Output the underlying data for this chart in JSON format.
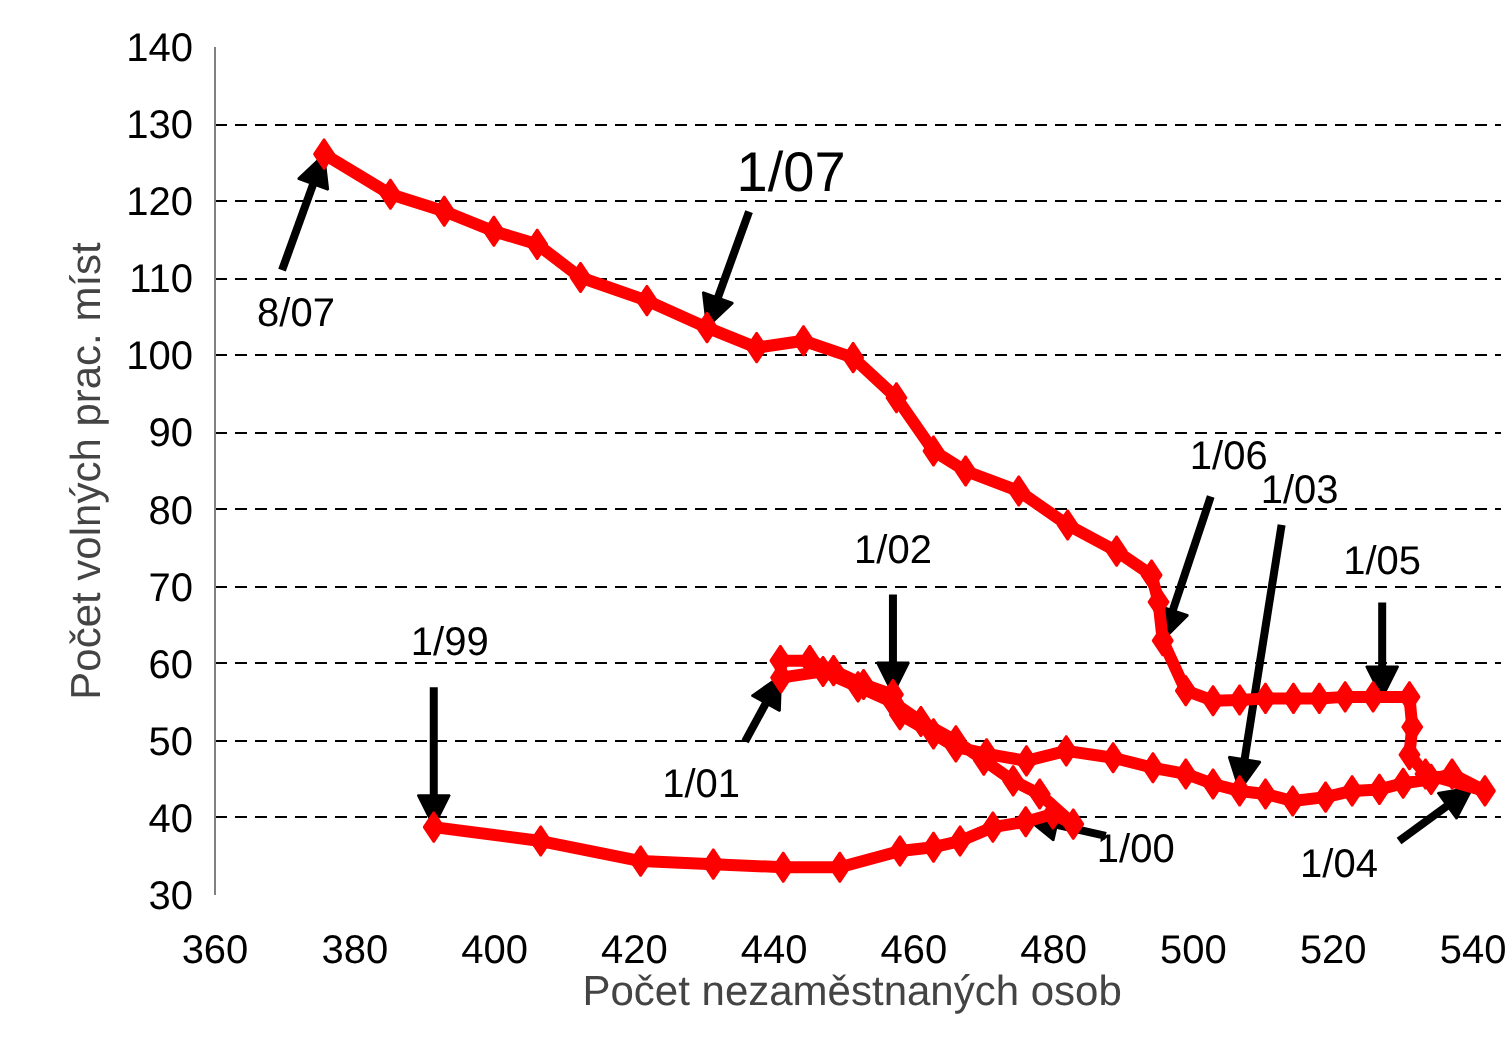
{
  "chart_data": {
    "type": "line",
    "xlabel": "Počet  nezaměstnaných osob",
    "ylabel": "Počet volných prac. míst",
    "series": [
      {
        "color": "#ff0000",
        "x": [
          391.3,
          406.6,
          420.9,
          431.3,
          441.3,
          449.4,
          458,
          462.8,
          466.6,
          471.3,
          476,
          479.9,
          482.8,
          478,
          474.2,
          470,
          466,
          461,
          457,
          452,
          447,
          441,
          440.9,
          445.1,
          448.5,
          452.8,
          457,
          458,
          462.8,
          466,
          470.4,
          476.1,
          481.8,
          488.5,
          494.2,
          498.9,
          502.8,
          506.6,
          510.3,
          514.2,
          518.9,
          522.7,
          526.6,
          530,
          534,
          537,
          541.7,
          533.2,
          530.9,
          531.3,
          530.9,
          525.7,
          521.7,
          518,
          514.3,
          510.3,
          506.6,
          502.8,
          498.9,
          495.6,
          495,
          494,
          489,
          482,
          475,
          467.4,
          462.8,
          457.5,
          451.3,
          444.2,
          437.5,
          430.4,
          421.8,
          412.3,
          406.1,
          399.9,
          392.8,
          385.1,
          375.6
        ],
        "values": [
          38.8,
          37,
          34.4,
          34,
          33.6,
          33.6,
          35.7,
          36.2,
          37,
          38.8,
          39.5,
          40.5,
          39.2,
          43.1,
          44.8,
          47.5,
          50,
          52.5,
          55,
          57,
          59,
          58.2,
          60.4,
          60.4,
          59.1,
          57.3,
          56,
          53.4,
          50.9,
          49.2,
          48.3,
          47.4,
          48.7,
          47.8,
          46.5,
          45.7,
          44.4,
          43.5,
          43.1,
          42.2,
          42.7,
          43.5,
          43.7,
          44.5,
          45,
          45.7,
          43.5,
          45.7,
          48.2,
          51.8,
          55.7,
          55.7,
          55.7,
          55.5,
          55.5,
          55.5,
          55.3,
          55.2,
          56.5,
          63,
          68,
          71.5,
          74.6,
          78,
          82.4,
          85,
          87.6,
          94.5,
          99.7,
          101.9,
          101,
          103.6,
          107.1,
          110.1,
          114.4,
          116.1,
          118.7,
          120.9,
          126.1
        ]
      }
    ],
    "xlim": [
      360,
      544
    ],
    "ylim": [
      30,
      140
    ],
    "xticks": [
      360,
      380,
      400,
      420,
      440,
      460,
      480,
      500,
      520,
      540
    ],
    "yticks": [
      30,
      40,
      50,
      60,
      70,
      80,
      90,
      100,
      110,
      120,
      130,
      140
    ],
    "grid": "y",
    "marker": "diamond",
    "line_style": "solid",
    "annotations": [
      {
        "text": "1/99",
        "x": 391.3,
        "y": 38.8
      },
      {
        "text": "1/00",
        "x": 476,
        "y": 40
      },
      {
        "text": "1/01",
        "x": 441,
        "y": 58.5
      },
      {
        "text": "1/02",
        "x": 457,
        "y": 56
      },
      {
        "text": "1/03",
        "x": 506.6,
        "y": 43.5
      },
      {
        "text": "1/04",
        "x": 540,
        "y": 44
      },
      {
        "text": "1/05",
        "x": 527,
        "y": 55.5
      },
      {
        "text": "1/06",
        "x": 495.6,
        "y": 63
      },
      {
        "text": "1/07",
        "x": 430.4,
        "y": 103.6
      },
      {
        "text": "8/07",
        "x": 375.6,
        "y": 126.1
      }
    ]
  }
}
